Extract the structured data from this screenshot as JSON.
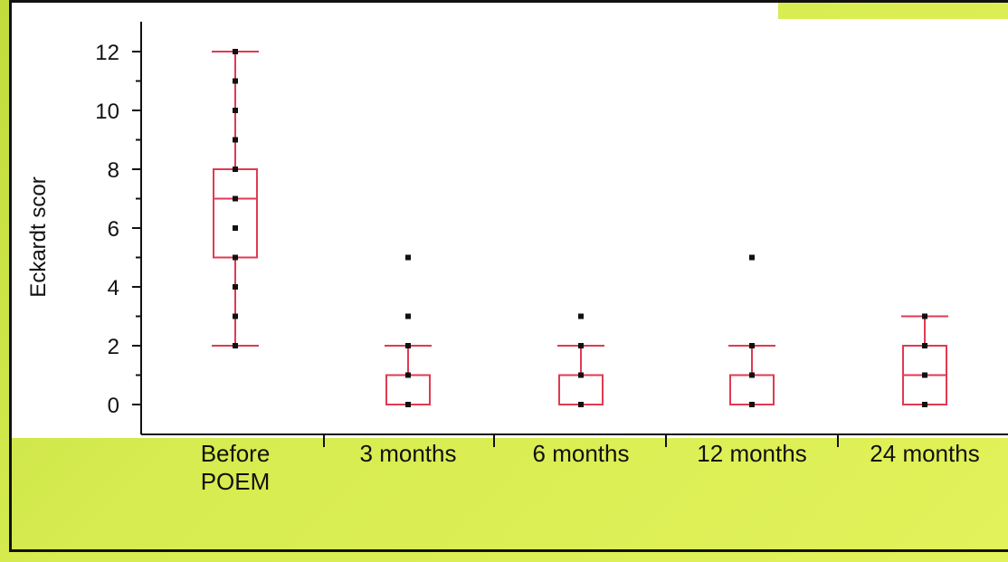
{
  "chart_data": {
    "type": "boxplot",
    "title": "",
    "xlabel": "",
    "ylabel": "Eckardt scor",
    "ylim": [
      -1,
      13
    ],
    "yticks": [
      0,
      2,
      4,
      6,
      8,
      10,
      12
    ],
    "categories": [
      {
        "label_lines": [
          "Before",
          "POEM"
        ],
        "label": "Before POEM"
      },
      {
        "label_lines": [
          "3 months"
        ],
        "label": "3 months"
      },
      {
        "label_lines": [
          "6 months"
        ],
        "label": "6 months"
      },
      {
        "label_lines": [
          "12 months"
        ],
        "label": "12 months"
      },
      {
        "label_lines": [
          "24 months"
        ],
        "label": "24 months"
      }
    ],
    "boxes": [
      {
        "min": 2,
        "q1": 5,
        "median": 7,
        "q3": 8,
        "max": 12,
        "points": [
          2,
          3,
          4,
          5,
          6,
          7,
          8,
          9,
          10,
          11,
          12
        ]
      },
      {
        "min": 0,
        "q1": 0,
        "median": 0,
        "q3": 1,
        "max": 2,
        "points": [
          0,
          1,
          2,
          3,
          5
        ]
      },
      {
        "min": 0,
        "q1": 0,
        "median": 0,
        "q3": 1,
        "max": 2,
        "points": [
          0,
          1,
          2,
          3
        ]
      },
      {
        "min": 0,
        "q1": 0,
        "median": 0,
        "q3": 1,
        "max": 2,
        "points": [
          0,
          1,
          2,
          5
        ]
      },
      {
        "min": 0,
        "q1": 0,
        "median": 1,
        "q3": 2,
        "max": 3,
        "points": [
          0,
          1,
          2,
          3
        ]
      }
    ],
    "colors": {
      "box": "#e03a52",
      "point": "#111111",
      "axis": "#111111"
    }
  }
}
